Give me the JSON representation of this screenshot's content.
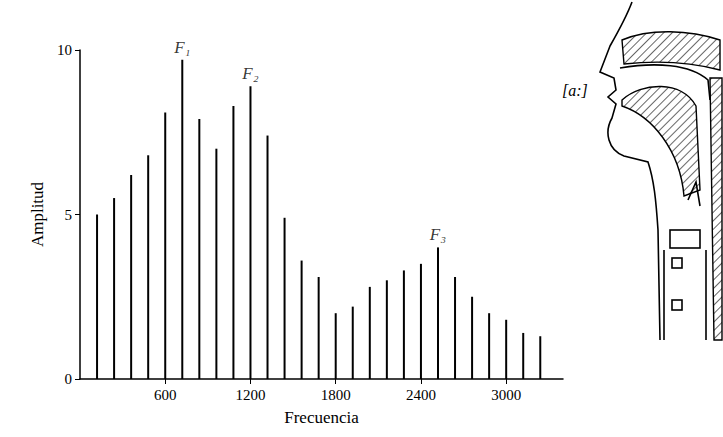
{
  "chart_data": {
    "type": "bar",
    "x": [
      120,
      240,
      360,
      480,
      600,
      720,
      840,
      960,
      1080,
      1200,
      1320,
      1440,
      1560,
      1680,
      1800,
      1920,
      2040,
      2160,
      2280,
      2400,
      2520,
      2640,
      2760,
      2880,
      3000,
      3120,
      3240
    ],
    "values": [
      5.0,
      5.5,
      6.2,
      6.8,
      8.1,
      9.7,
      7.9,
      7.0,
      8.3,
      8.9,
      7.4,
      4.9,
      3.6,
      3.1,
      2.0,
      2.2,
      2.8,
      3.0,
      3.3,
      3.5,
      4.0,
      3.1,
      2.5,
      2.0,
      1.8,
      1.4,
      1.3
    ],
    "color": "#000000",
    "xlim": [
      0,
      3400
    ],
    "xticks": [
      600,
      1200,
      1800,
      2400,
      3000
    ],
    "ylim": [
      0,
      10
    ],
    "yticks": [
      0,
      5,
      10
    ],
    "xlabel": "Frecuencia",
    "ylabel": "Amplitud",
    "grid": false,
    "annotations": [
      {
        "text": "F₁",
        "x": 720,
        "y": 9.7
      },
      {
        "text": "F₂",
        "x": 1200,
        "y": 8.9
      },
      {
        "text": "F₃",
        "x": 2520,
        "y": 4.0
      }
    ],
    "figure_label": "[a:]"
  }
}
